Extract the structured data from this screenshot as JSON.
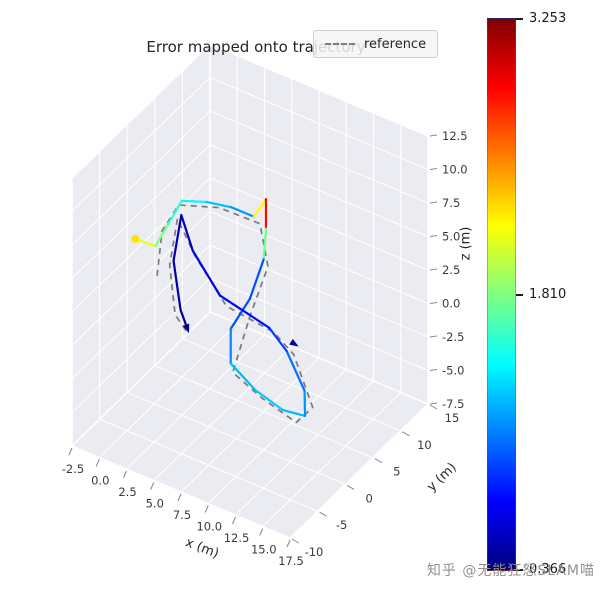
{
  "title": "Error mapped onto trajectory",
  "legend": {
    "label": "reference",
    "position": "upper right"
  },
  "watermark": "知乎 @无能狂怒SLAM喵",
  "colorbar": {
    "colormap": "jet",
    "vmin": 0.366,
    "vmax": 3.253,
    "ticks": [
      "3.253",
      "1.810",
      "0.366"
    ]
  },
  "axes": {
    "x": {
      "label": "x (m)",
      "ticks": [
        "-2.5",
        "0.0",
        "2.5",
        "5.0",
        "7.5",
        "10.0",
        "12.5",
        "15.0",
        "17.5"
      ]
    },
    "y": {
      "label": "y (m)",
      "ticks": [
        "-10",
        "-5",
        "0",
        "5",
        "10",
        "15"
      ]
    },
    "z": {
      "label": "z (m)",
      "ticks": [
        "-7.5",
        "-5.0",
        "-2.5",
        "0.0",
        "2.5",
        "5.0",
        "7.5",
        "10.0",
        "12.5"
      ]
    }
  },
  "style_colors": {
    "pane": "#ebebf2",
    "grid": "#ffffff",
    "reference_line": "#7a7a7a",
    "tick_text": "#3a3a3a"
  },
  "chart_data": {
    "type": "line",
    "subtype": "3d-trajectory-colored-by-error",
    "title": "Error mapped onto trajectory",
    "xlabel": "x (m)",
    "ylabel": "y (m)",
    "zlabel": "z (m)",
    "xlim": [
      -2.5,
      17.5
    ],
    "ylim": [
      -10,
      15
    ],
    "zlim": [
      -7.5,
      12.5
    ],
    "grid": true,
    "legend_entries": [
      "reference"
    ],
    "colormap": "jet",
    "error_range": [
      0.366,
      3.253
    ],
    "reference": {
      "style": "dashed",
      "points": [
        [
          1.0,
          -1.5,
          3.0
        ],
        [
          0.3,
          0.8,
          5.2
        ],
        [
          0.8,
          2.8,
          6.5
        ],
        [
          4.0,
          3.8,
          7.0
        ],
        [
          7.5,
          4.3,
          6.8
        ],
        [
          8.8,
          3.2,
          4.5
        ],
        [
          8.2,
          1.2,
          1.5
        ],
        [
          7.8,
          -1.2,
          -2.0
        ],
        [
          10.0,
          -0.3,
          -3.5
        ],
        [
          12.5,
          1.0,
          -5.0
        ],
        [
          13.0,
          3.0,
          -4.5
        ],
        [
          10.5,
          4.5,
          -2.0
        ],
        [
          8.8,
          4.2,
          -0.8
        ],
        [
          5.5,
          2.2,
          0.8
        ],
        [
          2.8,
          1.8,
          3.8
        ],
        [
          1.0,
          2.2,
          5.8
        ],
        [
          1.3,
          0.2,
          3.2
        ],
        [
          2.5,
          -1.2,
          0.5
        ],
        [
          3.8,
          -1.8,
          0.0
        ]
      ]
    },
    "estimated": {
      "points_xyze": [
        [
          -1.5,
          -0.5,
          4.5,
          2.25
        ],
        [
          0.0,
          0.2,
          4.2,
          1.95
        ],
        [
          0.5,
          1.5,
          5.5,
          1.65
        ],
        [
          1.0,
          3.0,
          6.8,
          1.5
        ],
        [
          3.0,
          3.5,
          7.2,
          1.35
        ],
        [
          5.0,
          4.0,
          7.3,
          1.2
        ],
        [
          7.0,
          4.2,
          7.2,
          1.1
        ],
        [
          8.2,
          4.0,
          9.0,
          3.253
        ],
        [
          8.2,
          4.0,
          6.8,
          2.5
        ],
        [
          8.5,
          3.0,
          5.0,
          1.0
        ],
        [
          8.0,
          1.5,
          2.5,
          0.9
        ],
        [
          7.0,
          0.0,
          0.5,
          1.0
        ],
        [
          7.5,
          -1.0,
          -1.5,
          1.2
        ],
        [
          9.5,
          -0.5,
          -3.0,
          1.3
        ],
        [
          11.5,
          0.5,
          -4.2,
          1.3
        ],
        [
          12.8,
          2.0,
          -4.8,
          1.2
        ],
        [
          12.0,
          3.5,
          -3.8,
          1.1
        ],
        [
          10.0,
          4.2,
          -1.8,
          1.0
        ],
        [
          8.5,
          4.0,
          -0.5,
          0.8
        ],
        [
          5.0,
          2.0,
          1.5,
          0.7
        ],
        [
          2.5,
          2.0,
          4.0,
          0.6
        ],
        [
          1.2,
          2.5,
          6.0,
          0.55
        ],
        [
          1.5,
          0.5,
          3.5,
          0.5
        ],
        [
          2.8,
          -0.8,
          0.8,
          0.45
        ],
        [
          3.6,
          -1.4,
          0.2,
          0.4
        ]
      ]
    },
    "markers": {
      "start": {
        "shape": "dot",
        "position": [
          -1.5,
          -0.5,
          4.5
        ],
        "error": 2.25
      },
      "end": {
        "shape": "arrow",
        "position": [
          3.6,
          -1.4,
          0.2
        ],
        "error": 0.4
      },
      "mid": {
        "shape": "arrow",
        "position": [
          10.2,
          4.6,
          -1.2
        ],
        "direction": [
          1,
          0.2,
          -0.3
        ],
        "error": 0.45
      }
    }
  }
}
